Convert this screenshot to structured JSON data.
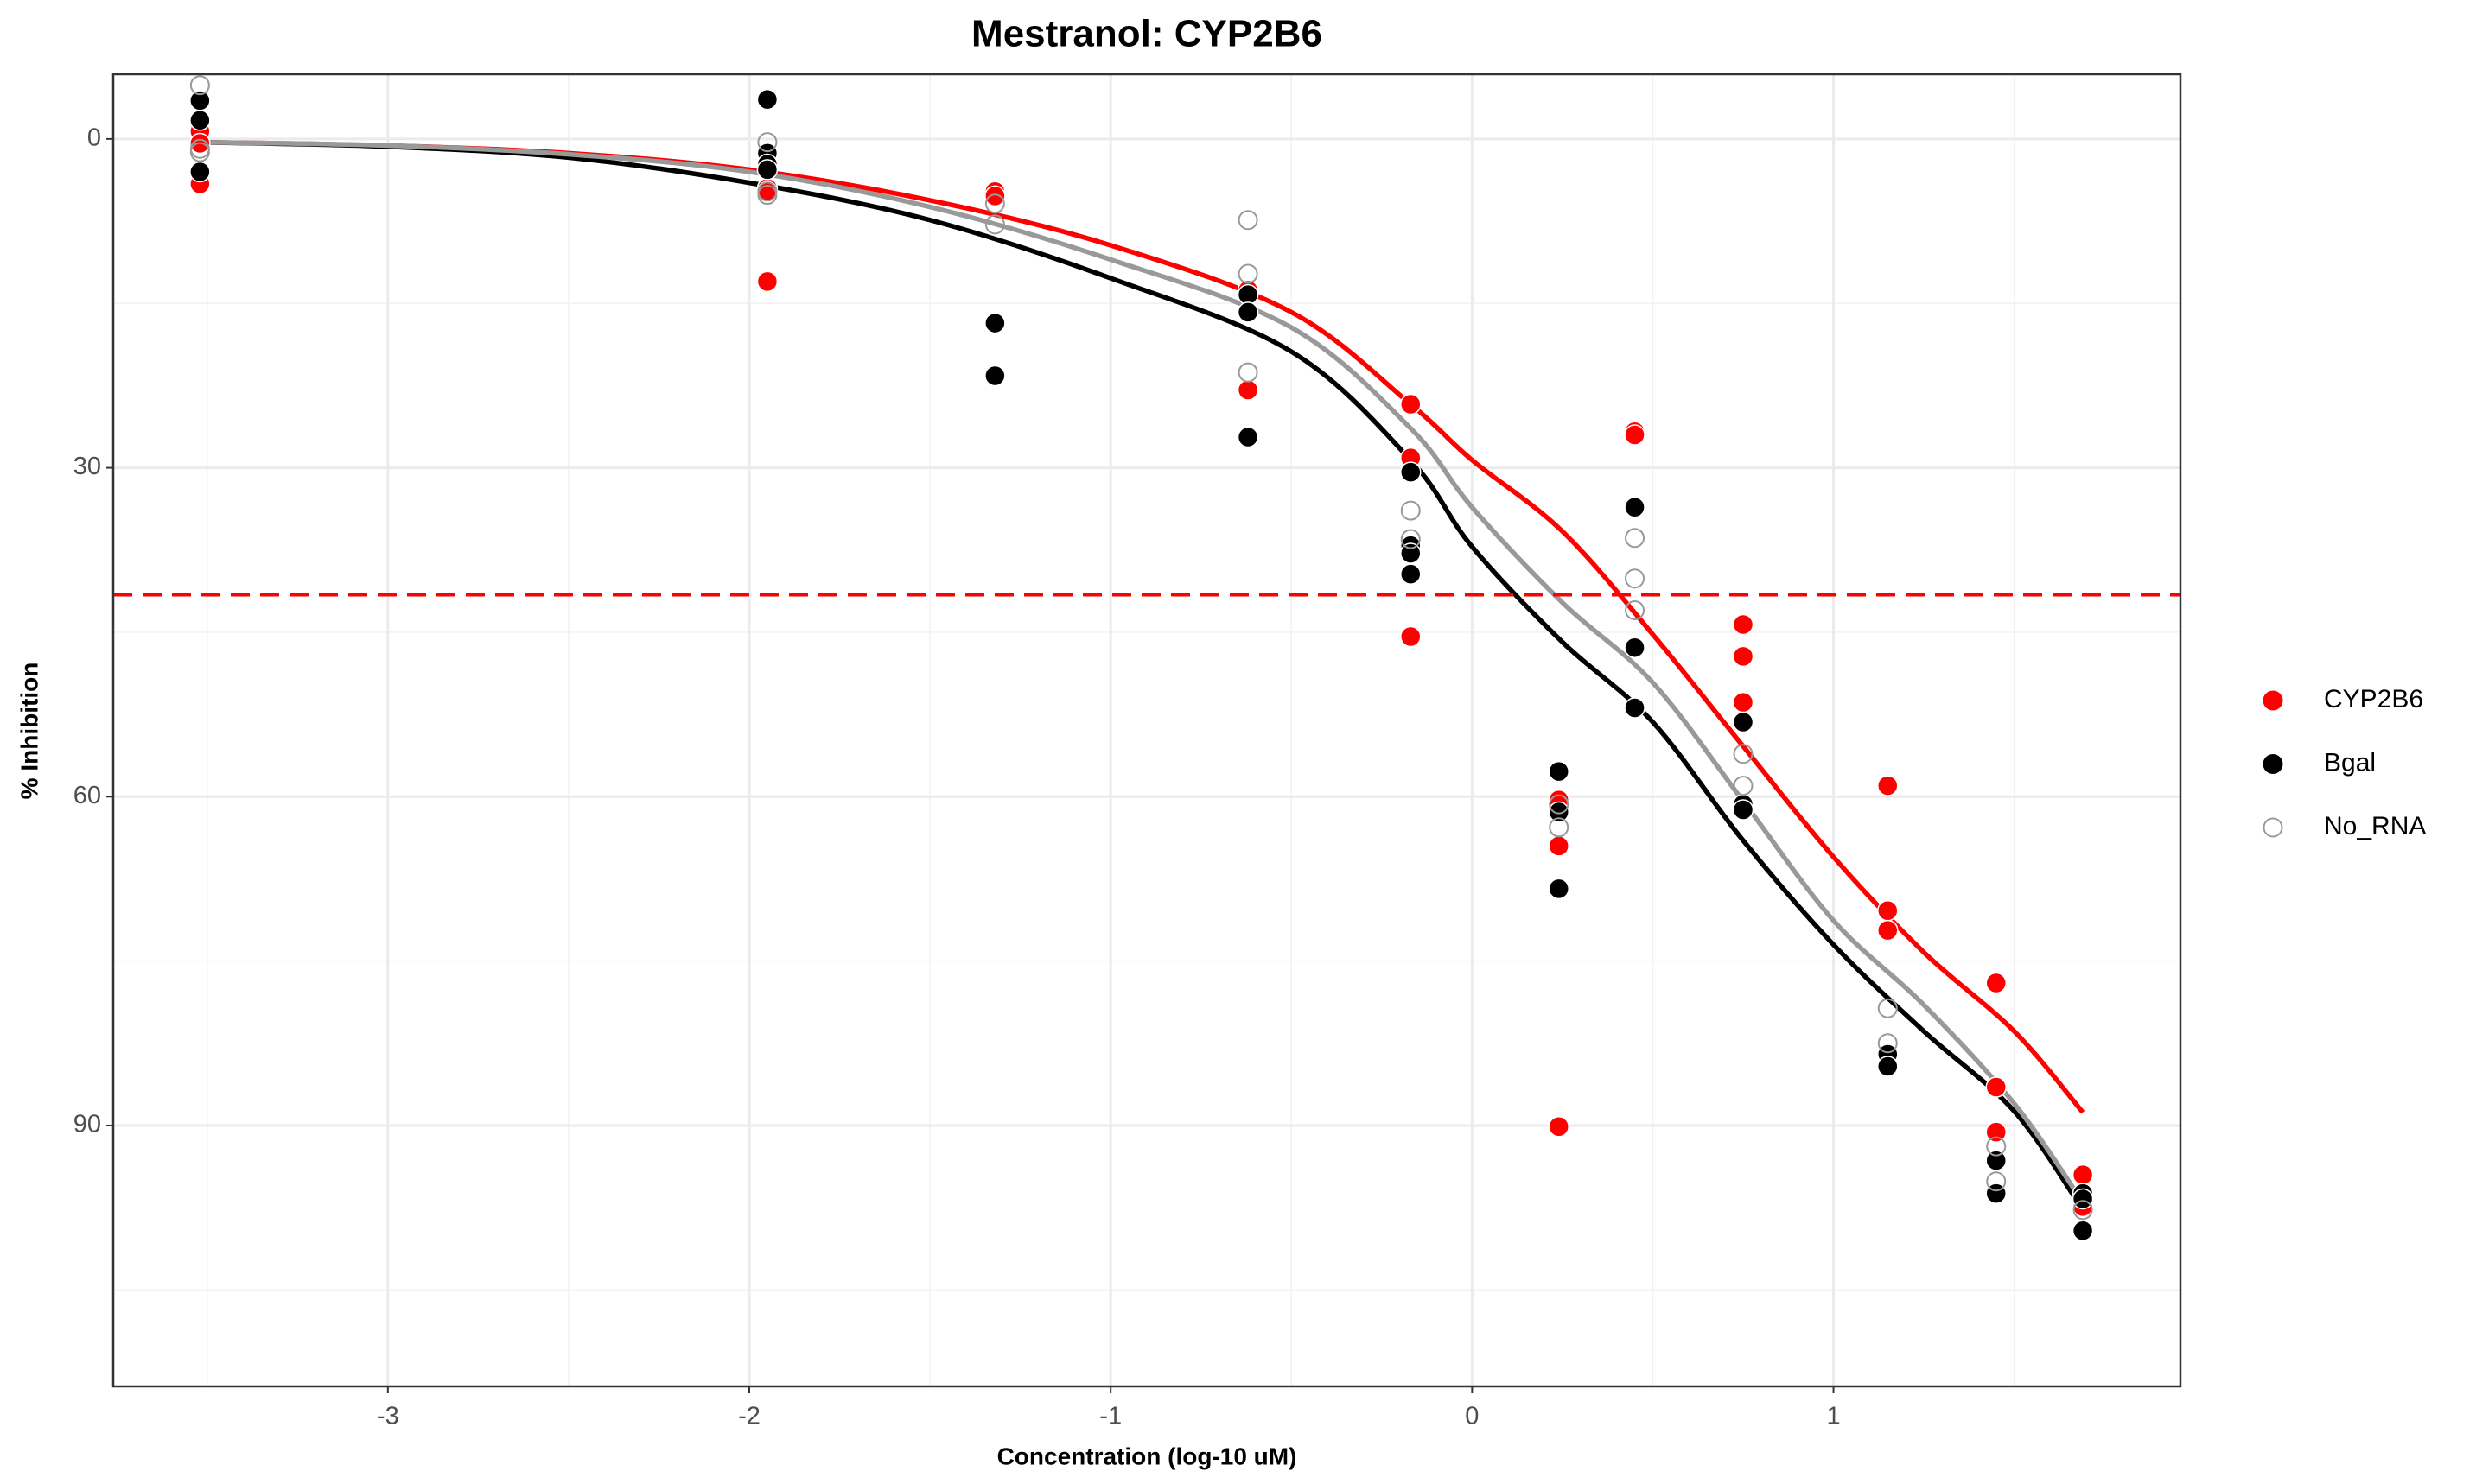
{
  "chart_data": {
    "type": "scatter",
    "title": "Mestranol: CYP2B6",
    "x_label": "Concentration (log-10 uM)",
    "y_label": "% Inhibition",
    "xlim": [
      -3.76,
      1.96
    ],
    "ylim": [
      -5.9,
      113.8
    ],
    "y_reversed": true,
    "xticks": [
      -3,
      -2,
      -1,
      0,
      1
    ],
    "yticks": [
      0,
      30,
      60,
      90
    ],
    "grid": true,
    "legend_position": "right",
    "hline": 41.6,
    "hline_color": "#ff0000",
    "series": [
      {
        "name": "CYP2B6",
        "color": "#ff0000",
        "marker": "filled",
        "x": [
          -3.52,
          -3.52,
          -3.52,
          -3.52,
          -1.95,
          -1.95,
          -1.95,
          -1.32,
          -1.32,
          -0.62,
          -0.62,
          -0.17,
          -0.17,
          -0.17,
          0.24,
          0.24,
          0.24,
          0.45,
          0.45,
          0.75,
          0.75,
          0.75,
          1.15,
          1.15,
          1.15,
          1.45,
          1.45,
          1.45,
          1.69,
          1.69
        ],
        "values": [
          -1.3,
          -0.7,
          0.4,
          4.1,
          4.5,
          4.8,
          13,
          4.8,
          5.2,
          13.8,
          22.9,
          24.2,
          29.1,
          45.4,
          60.3,
          64.5,
          90.1,
          26.7,
          27,
          44.3,
          47.2,
          51.4,
          59,
          70.4,
          72.2,
          77,
          86.5,
          90.6,
          94.5,
          97.4
        ]
      },
      {
        "name": "Bgal",
        "color": "#000000",
        "marker": "filled",
        "x": [
          -3.52,
          -3.52,
          -3.52,
          -1.95,
          -1.95,
          -1.95,
          -1.95,
          -1.32,
          -1.32,
          -0.62,
          -0.62,
          -0.62,
          -0.17,
          -0.17,
          -0.17,
          -0.17,
          0.24,
          0.24,
          0.24,
          0.45,
          0.45,
          0.45,
          0.75,
          0.75,
          0.75,
          1.15,
          1.15,
          1.45,
          1.45,
          1.69,
          1.69,
          1.69
        ],
        "values": [
          -3.5,
          -1.7,
          3,
          -3.6,
          1.3,
          2.3,
          2.8,
          16.8,
          21.6,
          14.2,
          15.8,
          27.2,
          30.4,
          37.1,
          37.8,
          39.7,
          57.7,
          61.4,
          68.4,
          33.6,
          46.4,
          51.9,
          53.2,
          60.7,
          61.2,
          83.5,
          84.6,
          93.2,
          96.2,
          96.2,
          96.7,
          99.6
        ]
      },
      {
        "name": "No_RNA",
        "color": "#999999",
        "marker": "open",
        "x": [
          -3.52,
          -3.52,
          -3.52,
          -1.95,
          -1.95,
          -1.95,
          -1.32,
          -1.32,
          -0.62,
          -0.62,
          -0.62,
          -0.17,
          -0.17,
          0.24,
          0.24,
          0.45,
          0.45,
          0.45,
          0.75,
          0.75,
          1.15,
          1.15,
          1.45,
          1.45,
          1.69
        ],
        "values": [
          -4.9,
          0.9,
          1.2,
          0.3,
          4.8,
          5.1,
          5.9,
          7.8,
          7.4,
          12.3,
          21.3,
          33.9,
          36.5,
          60.7,
          62.8,
          36.4,
          40.1,
          43,
          56.1,
          59,
          79.3,
          82.5,
          91.9,
          95.1,
          97.7
        ]
      }
    ],
    "fits": [
      {
        "color": "#ff0000",
        "x": [
          -3.52,
          -3,
          -2.5,
          -2,
          -1.5,
          -1,
          -0.5,
          -0.17,
          0,
          0.25,
          0.5,
          0.75,
          1,
          1.25,
          1.5,
          1.69
        ],
        "values": [
          0.3,
          0.6,
          1.3,
          2.8,
          5.6,
          9.7,
          15.8,
          24.2,
          29.3,
          35.8,
          45.2,
          55.4,
          65.5,
          74.2,
          81.4,
          88.8
        ]
      },
      {
        "color": "#000000",
        "x": [
          -3.52,
          -3,
          -2.5,
          -2,
          -1.5,
          -1,
          -0.5,
          -0.17,
          0,
          0.25,
          0.5,
          0.75,
          1,
          1.25,
          1.5,
          1.69
        ],
        "values": [
          0.3,
          0.7,
          1.7,
          4,
          7.4,
          12.7,
          19.4,
          29.3,
          37.2,
          45.9,
          53.2,
          64,
          73.5,
          81.4,
          88.7,
          97.7
        ]
      },
      {
        "color": "#999999",
        "x": [
          -3.52,
          -3,
          -2.5,
          -2,
          -1.5,
          -1,
          -0.5,
          -0.17,
          0,
          0.25,
          0.5,
          0.75,
          1,
          1.25,
          1.5,
          1.69
        ],
        "values": [
          0.3,
          0.6,
          1.4,
          3,
          6.2,
          11,
          17.2,
          26.4,
          33.6,
          42.3,
          49.6,
          60.4,
          71.3,
          79,
          88,
          97
        ]
      }
    ]
  }
}
